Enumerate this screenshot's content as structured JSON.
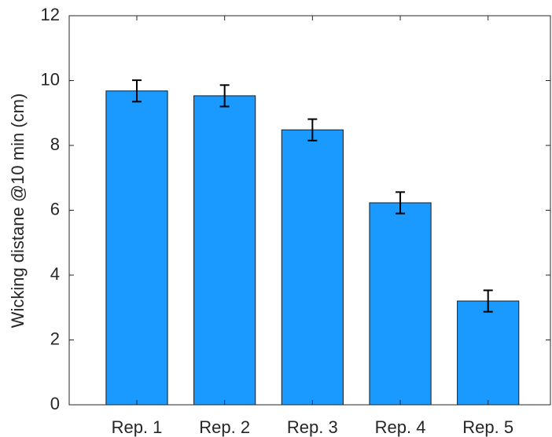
{
  "chart_data": {
    "type": "bar",
    "y_label": "Wicking distane @10 min (cm)",
    "categories": [
      "Rep. 1",
      "Rep. 2",
      "Rep. 3",
      "Rep. 4",
      "Rep. 5"
    ],
    "values": [
      9.68,
      9.53,
      8.48,
      6.23,
      3.2
    ],
    "errors": [
      0.33,
      0.33,
      0.33,
      0.33,
      0.33
    ],
    "color": "#1a99ff",
    "ylim": [
      0,
      12
    ],
    "yticks": [
      0,
      2,
      4,
      6,
      8,
      10,
      12
    ],
    "grid": false
  }
}
